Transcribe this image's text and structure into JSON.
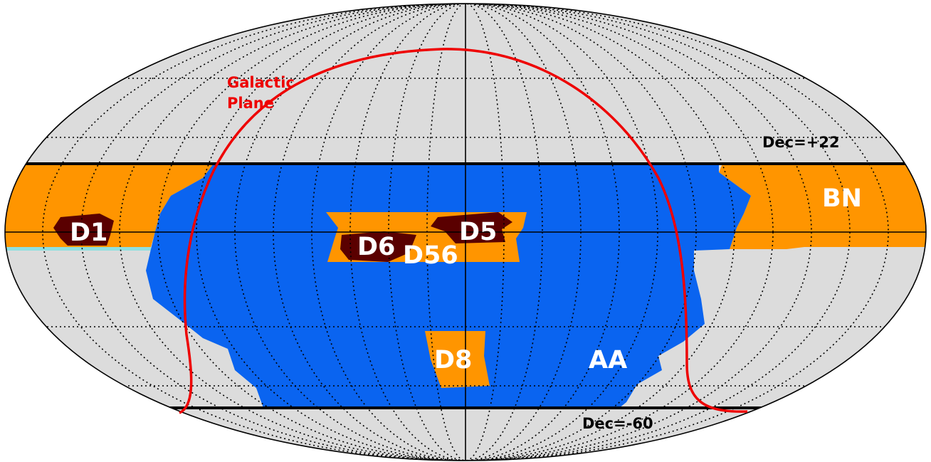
{
  "map": {
    "projection": "mollweide",
    "colors": {
      "background": "#dcdcdc",
      "wide_survey": "#0a64f0",
      "boss_north": "#ff9500",
      "deep_patch": "#5a0000",
      "galactic_plane": "#ee0000",
      "outline": "#000000",
      "cyan_edge": "#8fe0e0"
    },
    "regions": {
      "aa": "AA",
      "bn": "BN",
      "d1": "D1",
      "d5": "D5",
      "d6": "D6",
      "d56": "D56",
      "d8": "D8"
    },
    "dec_limits": {
      "north": "Dec=+22",
      "south": "Dec=-60"
    },
    "galactic_plane": {
      "line1": "Galactic",
      "line2": "Plane"
    }
  }
}
